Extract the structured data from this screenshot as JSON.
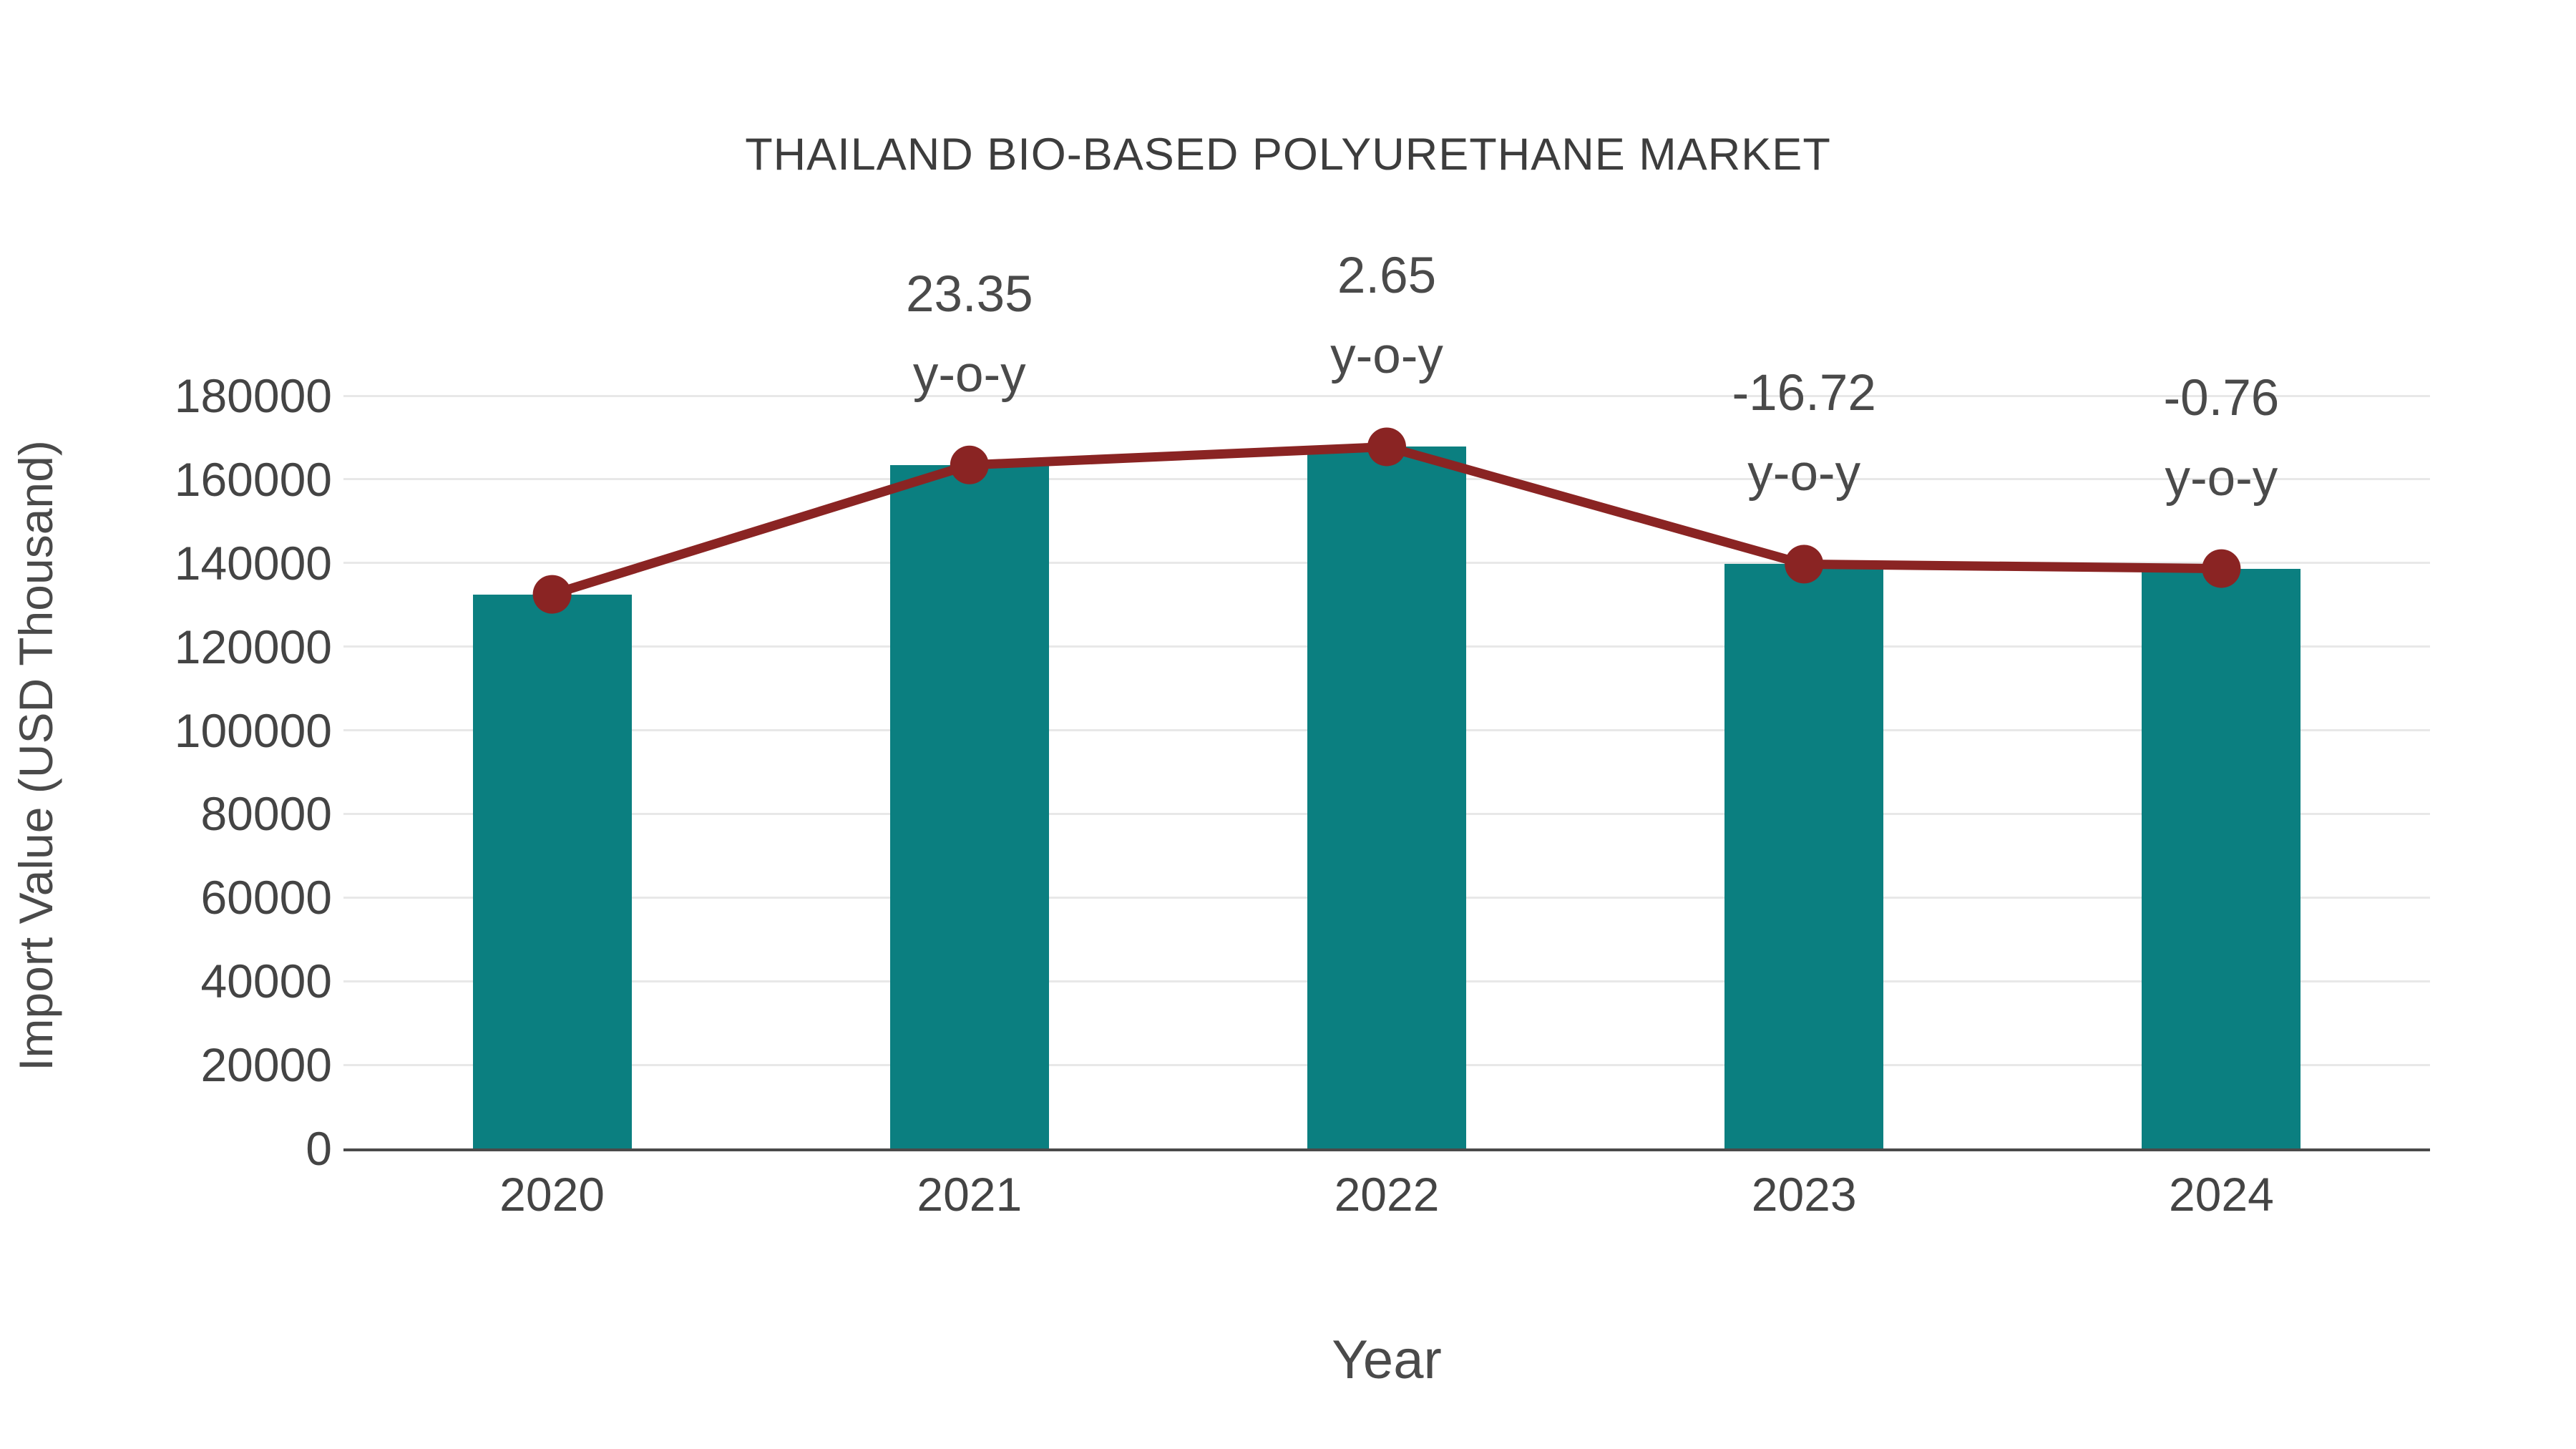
{
  "chart_data": {
    "type": "bar",
    "title": "THAILAND BIO-BASED POLYURETHANE MARKET",
    "xlabel": "Year",
    "ylabel": "Import Value (USD Thousand)",
    "categories": [
      "2020",
      "2021",
      "2022",
      "2023",
      "2024"
    ],
    "series": [
      {
        "name": "Import Value bars",
        "type": "bar",
        "color": "#0B7F80",
        "values": [
          132500,
          163440,
          167770,
          139720,
          138660
        ]
      },
      {
        "name": "Import Value trend line",
        "type": "line",
        "color": "#8A2423",
        "values": [
          132500,
          163440,
          167770,
          139720,
          138660
        ]
      }
    ],
    "annotations": [
      {
        "category": "2021",
        "line1": "23.35",
        "line2": "y-o-y"
      },
      {
        "category": "2022",
        "line1": "2.65",
        "line2": "y-o-y"
      },
      {
        "category": "2023",
        "line1": "-16.72",
        "line2": "y-o-y"
      },
      {
        "category": "2024",
        "line1": "-0.76",
        "line2": "y-o-y"
      }
    ],
    "y_axis": {
      "range": [
        0,
        180000
      ],
      "tick_step": 20000,
      "ticks": [
        0,
        20000,
        40000,
        60000,
        80000,
        100000,
        120000,
        140000,
        160000,
        180000
      ],
      "tick_labels": [
        "0",
        "20000",
        "40000",
        "60000",
        "80000",
        "100000",
        "120000",
        "140000",
        "160000",
        "180000"
      ]
    },
    "grid": true,
    "legend_position": "none"
  },
  "style": {
    "bar_color": "#0B7F80",
    "line_color": "#8A2423",
    "marker_color": "#8A2423",
    "grid_color": "#E8E8E8",
    "axis_line_color": "#4A4A4A",
    "tick_text_color": "#444444",
    "title_color": "#3D3D3D",
    "background": "#FFFFFF"
  }
}
